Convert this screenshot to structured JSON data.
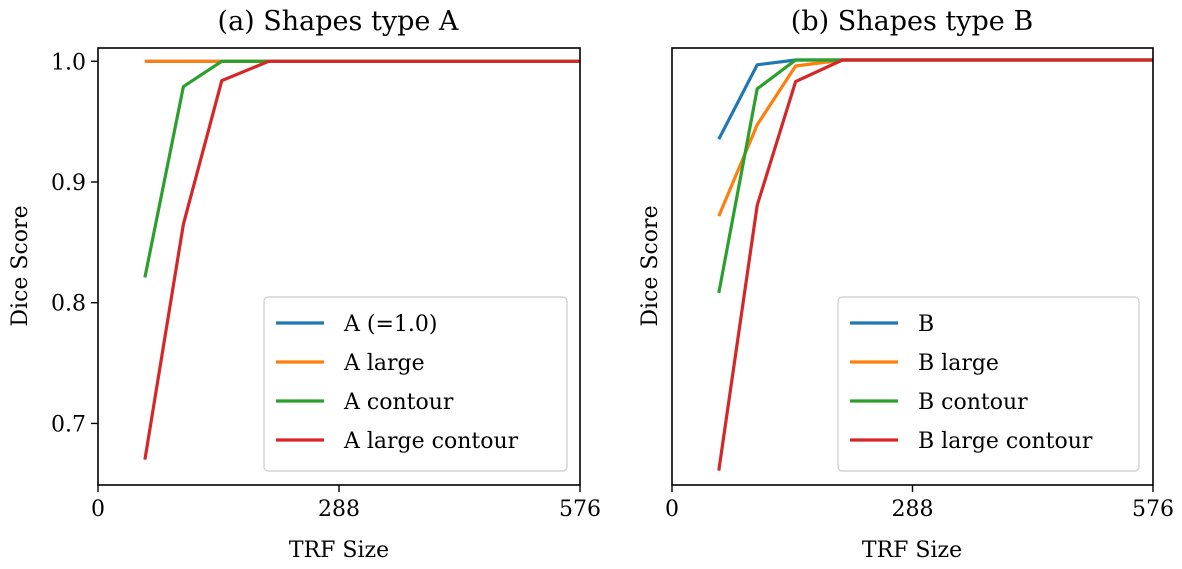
{
  "chart_data": [
    {
      "type": "line",
      "title": "(a) Shapes type A",
      "xlabel": "TRF Size",
      "ylabel": "Dice Score",
      "xlim": [
        0,
        576
      ],
      "ylim": [
        0.649,
        1.011
      ],
      "xticks": [
        "0",
        "288",
        "576"
      ],
      "yticks": [
        "0.7",
        "0.8",
        "0.9",
        "1.0"
      ],
      "legend_position": "lower-right",
      "x": [
        56,
        102,
        148,
        204,
        260,
        316,
        372,
        428,
        484,
        540,
        576
      ],
      "series": [
        {
          "name": "A (=1.0)",
          "color": "#1f77b4",
          "values": [
            1.0,
            1.0,
            1.0,
            1.0,
            1.0,
            1.0,
            1.0,
            1.0,
            1.0,
            1.0,
            1.0
          ]
        },
        {
          "name": "A large",
          "color": "#ff7f0e",
          "values": [
            1.0,
            1.0,
            1.0,
            1.0,
            1.0,
            1.0,
            1.0,
            1.0,
            1.0,
            1.0,
            1.0
          ]
        },
        {
          "name": "A contour",
          "color": "#2ca02c",
          "values": [
            0.821,
            0.979,
            1.0,
            1.0,
            1.0,
            1.0,
            1.0,
            1.0,
            1.0,
            1.0,
            1.0
          ]
        },
        {
          "name": "A large contour",
          "color": "#d62728",
          "values": [
            0.67,
            0.865,
            0.984,
            1.0,
            1.0,
            1.0,
            1.0,
            1.0,
            1.0,
            1.0,
            1.0
          ]
        }
      ]
    },
    {
      "type": "line",
      "title": "(b) Shapes type B",
      "xlabel": "TRF Size",
      "ylabel": "Dice Score",
      "xlim": [
        0,
        576
      ],
      "ylim": [
        0.646,
        1.01
      ],
      "xticks": [
        "0",
        "288",
        "576"
      ],
      "yticks": [],
      "legend_position": "lower-right",
      "x": [
        56,
        102,
        148,
        204,
        260,
        316,
        372,
        428,
        484,
        540,
        576
      ],
      "series": [
        {
          "name": "B",
          "color": "#1f77b4",
          "values": [
            0.934,
            0.996,
            1.0,
            1.0,
            1.0,
            1.0,
            1.0,
            1.0,
            1.0,
            1.0,
            1.0
          ]
        },
        {
          "name": "B large",
          "color": "#ff7f0e",
          "values": [
            0.87,
            0.946,
            0.995,
            1.0,
            1.0,
            1.0,
            1.0,
            1.0,
            1.0,
            1.0,
            1.0
          ]
        },
        {
          "name": "B contour",
          "color": "#2ca02c",
          "values": [
            0.806,
            0.976,
            1.0,
            1.0,
            1.0,
            1.0,
            1.0,
            1.0,
            1.0,
            1.0,
            1.0
          ]
        },
        {
          "name": "B large contour",
          "color": "#d62728",
          "values": [
            0.658,
            0.879,
            0.982,
            1.0,
            1.0,
            1.0,
            1.0,
            1.0,
            1.0,
            1.0,
            1.0
          ]
        }
      ]
    }
  ]
}
